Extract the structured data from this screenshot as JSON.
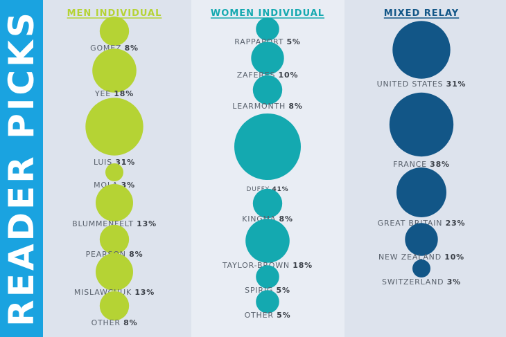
{
  "banner": {
    "title": "READER PICKS"
  },
  "colors": {
    "banner": "#1aa3e0",
    "men": "#b5d334",
    "women": "#14a9b0",
    "relay": "#125687",
    "label": "#59616c",
    "pct": "#3b4048"
  },
  "chart_data": [
    {
      "type": "bubble",
      "title": "MEN INDIVIDUAL",
      "color": "#b5d334",
      "categories": [
        "GOMEZ",
        "YEE",
        "LUIS",
        "MOLA",
        "BLUMMENFELT",
        "PEARSON",
        "MISLAWCHUK",
        "OTHER"
      ],
      "values": [
        8,
        18,
        31,
        3,
        13,
        8,
        13,
        8
      ],
      "value_labels": [
        "8%",
        "18%",
        "31%",
        "3%",
        "13%",
        "8%",
        "13%",
        "8%"
      ]
    },
    {
      "type": "bubble",
      "title": "WOMEN INDIVIDUAL",
      "color": "#14a9b0",
      "categories": [
        "RAPPAPORT",
        "ZAFERES",
        "LEARMONTH",
        "DUFFY",
        "KINGMA",
        "TAYLOR-BROWN",
        "SPIRIG",
        "OTHER"
      ],
      "values": [
        5,
        10,
        8,
        41,
        8,
        18,
        5,
        5
      ],
      "value_labels": [
        "5%",
        "10%",
        "8%",
        "41%",
        "8%",
        "18%",
        "5%",
        "5%"
      ]
    },
    {
      "type": "bubble",
      "title": "MIXED RELAY",
      "color": "#125687",
      "categories": [
        "UNITED STATES",
        "FRANCE",
        "GREAT BRITAIN",
        "NEW ZEALAND",
        "SWITZERLAND"
      ],
      "values": [
        31,
        38,
        23,
        10,
        3
      ],
      "value_labels": [
        "31%",
        "38%",
        "23%",
        "10%",
        "3%"
      ]
    }
  ]
}
